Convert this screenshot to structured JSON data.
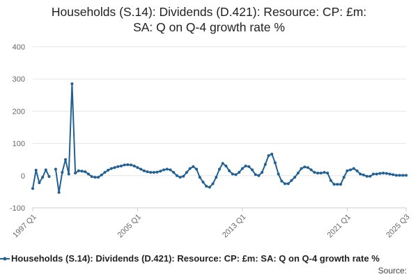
{
  "chart_data": {
    "type": "line",
    "title_lines": [
      "Households (S.14): Dividends (D.421): Resource: CP: £m:",
      "SA: Q on Q-4 growth rate %"
    ],
    "xlabel": "",
    "ylabel": "",
    "ylim": [
      -100,
      400
    ],
    "yticks": [
      -100,
      0,
      100,
      200,
      300,
      400
    ],
    "x_tick_labels": [
      "1997 Q1",
      "2005 Q1",
      "2013 Q1",
      "2021 Q1",
      "2025 Q3"
    ],
    "grid": "horizontal",
    "legend_position": "bottom",
    "series": [
      {
        "name": "Households (S.14): Dividends (D.421): Resource: CP: £m: SA: Q on Q-4 growth rate %",
        "color": "#206095",
        "x": [
          "1997 Q1",
          "1997 Q2",
          "1997 Q3",
          "1997 Q4",
          "1998 Q1",
          "1998 Q2",
          "1998 Q3",
          "1998 Q4",
          "1999 Q1",
          "1999 Q2",
          "1999 Q3",
          "1999 Q4",
          "2000 Q1",
          "2000 Q2",
          "2000 Q3",
          "2000 Q4",
          "2001 Q1",
          "2001 Q2",
          "2001 Q3",
          "2001 Q4",
          "2002 Q1",
          "2002 Q2",
          "2002 Q3",
          "2002 Q4",
          "2003 Q1",
          "2003 Q2",
          "2003 Q3",
          "2003 Q4",
          "2004 Q1",
          "2004 Q2",
          "2004 Q3",
          "2004 Q4",
          "2005 Q1",
          "2005 Q2",
          "2005 Q3",
          "2005 Q4",
          "2006 Q1",
          "2006 Q2",
          "2006 Q3",
          "2006 Q4",
          "2007 Q1",
          "2007 Q2",
          "2007 Q3",
          "2007 Q4",
          "2008 Q1",
          "2008 Q2",
          "2008 Q3",
          "2008 Q4",
          "2009 Q1",
          "2009 Q2",
          "2009 Q3",
          "2009 Q4",
          "2010 Q1",
          "2010 Q2",
          "2010 Q3",
          "2010 Q4",
          "2011 Q1",
          "2011 Q2",
          "2011 Q3",
          "2011 Q4",
          "2012 Q1",
          "2012 Q2",
          "2012 Q3",
          "2012 Q4",
          "2013 Q1",
          "2013 Q2",
          "2013 Q3",
          "2013 Q4",
          "2014 Q1",
          "2014 Q2",
          "2014 Q3",
          "2014 Q4",
          "2015 Q1",
          "2015 Q2",
          "2015 Q3",
          "2015 Q4",
          "2016 Q1",
          "2016 Q2",
          "2016 Q3",
          "2016 Q4",
          "2017 Q1",
          "2017 Q2",
          "2017 Q3",
          "2017 Q4",
          "2018 Q1",
          "2018 Q2",
          "2018 Q3",
          "2018 Q4",
          "2019 Q1",
          "2019 Q2",
          "2019 Q3",
          "2019 Q4",
          "2020 Q1",
          "2020 Q2",
          "2020 Q3",
          "2020 Q4",
          "2021 Q1",
          "2021 Q2",
          "2021 Q3",
          "2021 Q4",
          "2022 Q1",
          "2022 Q2",
          "2022 Q3",
          "2022 Q4",
          "2023 Q1",
          "2023 Q2",
          "2023 Q3",
          "2023 Q4",
          "2024 Q1",
          "2024 Q2",
          "2024 Q3",
          "2024 Q4",
          "2025 Q1",
          "2025 Q2",
          "2025 Q3"
        ],
        "values": [
          -40,
          17,
          -22,
          -5,
          18,
          -3,
          null,
          20,
          -52,
          10,
          50,
          5,
          285,
          8,
          15,
          14,
          12,
          5,
          -3,
          -5,
          -5,
          2,
          10,
          17,
          22,
          25,
          28,
          30,
          33,
          34,
          33,
          30,
          25,
          20,
          15,
          12,
          10,
          10,
          11,
          14,
          18,
          20,
          18,
          10,
          0,
          -5,
          -2,
          10,
          22,
          28,
          20,
          -5,
          -20,
          -33,
          -36,
          -25,
          -5,
          20,
          38,
          30,
          15,
          5,
          3,
          10,
          22,
          30,
          28,
          18,
          3,
          0,
          10,
          35,
          62,
          67,
          40,
          5,
          -17,
          -25,
          -25,
          -15,
          -5,
          8,
          22,
          27,
          25,
          18,
          10,
          8,
          8,
          10,
          8,
          -15,
          -27,
          -27,
          -27,
          -5,
          15,
          18,
          22,
          15,
          5,
          2,
          -2,
          -2,
          5,
          5,
          7,
          8,
          7,
          5,
          3,
          1,
          1,
          1,
          1
        ]
      }
    ]
  },
  "legend_label": "Households (S.14): Dividends (D.421): Resource: CP: £m: SA: Q on Q-4 growth rate %",
  "source_label": "Source:"
}
